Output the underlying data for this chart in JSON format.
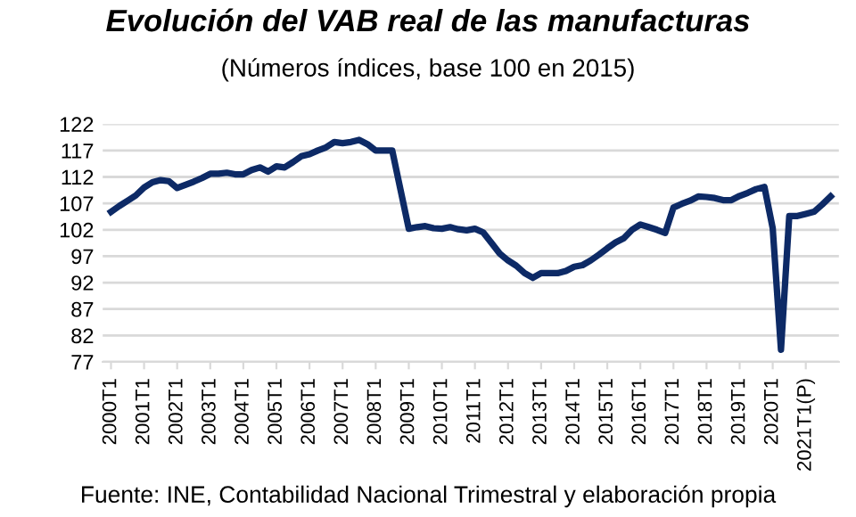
{
  "chart_data": {
    "type": "line",
    "title": "Evolución del VAB real de las manufacturas",
    "subtitle": "(Números índices, base 100 en 2015)",
    "categories": [
      "2000T1",
      null,
      null,
      null,
      "2001T1",
      null,
      null,
      null,
      "2002T1",
      null,
      null,
      null,
      "2003T1",
      null,
      null,
      null,
      "2004T1",
      null,
      null,
      null,
      "2005T1",
      null,
      null,
      null,
      "2006T1",
      null,
      null,
      null,
      "2007T1",
      null,
      null,
      null,
      "2008T1",
      null,
      null,
      null,
      "2009T1",
      null,
      null,
      null,
      "2010T1",
      null,
      null,
      null,
      "2011T1",
      null,
      null,
      null,
      "2012T1",
      null,
      null,
      null,
      "2013T1",
      null,
      null,
      null,
      "2014T1",
      null,
      null,
      null,
      "2015T1",
      null,
      null,
      null,
      "2016T1",
      null,
      null,
      null,
      "2017T1",
      null,
      null,
      null,
      "2018T1",
      null,
      null,
      null,
      "2019T1",
      null,
      null,
      null,
      "2020T1",
      null,
      null,
      null,
      "2021T1(P)",
      null,
      null,
      null
    ],
    "series": [
      {
        "color": "#0d2a66",
        "values": [
          105.4,
          106.5,
          107.5,
          108.5,
          110.0,
          111.0,
          111.4,
          111.2,
          109.9,
          110.5,
          111.1,
          111.8,
          112.6,
          112.6,
          112.8,
          112.5,
          112.5,
          113.3,
          113.8,
          113.0,
          114.0,
          113.8,
          114.8,
          115.9,
          116.3,
          117.0,
          117.6,
          118.6,
          118.4,
          118.6,
          119.0,
          118.2,
          117.0,
          117.0,
          117.0,
          109.6,
          102.2,
          102.5,
          102.7,
          102.3,
          102.2,
          102.5,
          102.1,
          101.9,
          102.2,
          101.5,
          99.5,
          97.5,
          96.2,
          95.2,
          93.8,
          92.9,
          93.8,
          93.8,
          93.8,
          94.2,
          95.0,
          95.3,
          96.2,
          97.3,
          98.5,
          99.6,
          100.4,
          102.0,
          103.0,
          102.5,
          102.0,
          101.4,
          106.2,
          106.9,
          107.5,
          108.3,
          108.2,
          108.0,
          107.6,
          107.6,
          108.4,
          109.0,
          109.7,
          110.1,
          102.3,
          79.3,
          104.6,
          104.6,
          105.0,
          105.4,
          106.8,
          108.3
        ]
      }
    ],
    "ylim": [
      77,
      122
    ],
    "yticks": [
      77,
      82,
      87,
      92,
      97,
      102,
      107,
      112,
      117,
      122
    ],
    "grid": "y",
    "marker": "none",
    "line_style": "solid",
    "annotations": [
      "Fuente: INE, Contabilidad Nacional Trimestral y elaboración propia"
    ]
  }
}
